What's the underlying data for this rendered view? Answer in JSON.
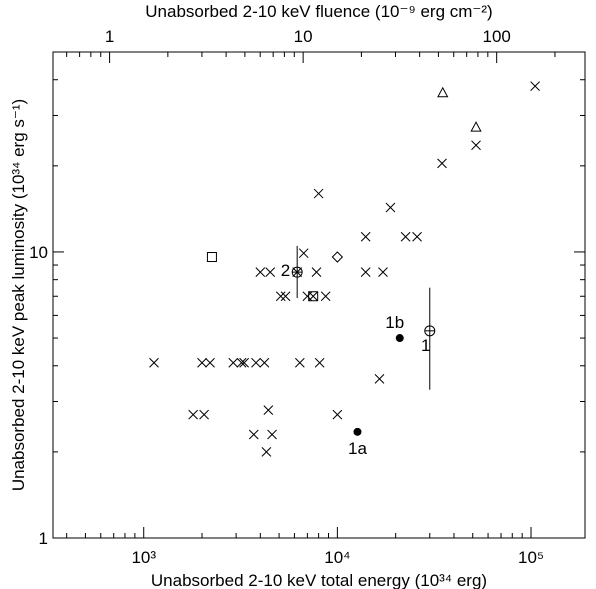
{
  "chart_data": {
    "type": "scatter",
    "title": "",
    "xlabel": "Unabsorbed 2-10 keV total energy (10³⁴ erg)",
    "ylabel": "Unabsorbed 2-10 keV peak luminosity (10³⁴ erg s⁻¹)",
    "x2label": "Unabsorbed 2-10 keV fluence (10⁻⁹ erg cm⁻²)",
    "xscale": "log",
    "yscale": "log",
    "xlim": [
      340,
      190000
    ],
    "ylim": [
      1,
      50
    ],
    "x2lim": [
      0.51,
      286
    ],
    "xticks": [
      {
        "value": 1000,
        "label": "10³"
      },
      {
        "value": 10000,
        "label": "10⁴"
      },
      {
        "value": 100000,
        "label": "10⁵"
      }
    ],
    "yticks": [
      {
        "value": 1,
        "label": "1"
      },
      {
        "value": 10,
        "label": "10"
      }
    ],
    "x2ticks": [
      {
        "value": 1,
        "label": "1"
      },
      {
        "value": 10,
        "label": "10"
      },
      {
        "value": 100,
        "label": "100"
      }
    ],
    "grid": false,
    "legend": "none",
    "colors": {
      "marker": "#000000",
      "axis": "#000000",
      "background": "#ffffff"
    },
    "series": [
      {
        "marker": "x",
        "points": [
          [
            1130,
            4.1
          ],
          [
            1800,
            2.7
          ],
          [
            2000,
            4.1
          ],
          [
            2050,
            2.7
          ],
          [
            2200,
            4.1
          ],
          [
            2900,
            4.1
          ],
          [
            3200,
            4.1
          ],
          [
            3300,
            4.1
          ],
          [
            3700,
            2.3
          ],
          [
            3800,
            4.1
          ],
          [
            4000,
            8.5
          ],
          [
            4200,
            4.1
          ],
          [
            4300,
            2.0
          ],
          [
            4400,
            2.8
          ],
          [
            4500,
            8.5
          ],
          [
            4600,
            2.3
          ],
          [
            5100,
            7.0
          ],
          [
            5400,
            7.0
          ],
          [
            6200,
            8.5
          ],
          [
            6400,
            4.1
          ],
          [
            6700,
            9.9
          ],
          [
            7000,
            7.0
          ],
          [
            7500,
            7.0
          ],
          [
            7800,
            8.5
          ],
          [
            8000,
            16.0
          ],
          [
            8100,
            4.1
          ],
          [
            8700,
            7.0
          ],
          [
            10000,
            2.7
          ],
          [
            14000,
            8.5
          ],
          [
            14000,
            11.3
          ],
          [
            16500,
            3.6
          ],
          [
            17200,
            8.5
          ],
          [
            18800,
            14.3
          ],
          [
            22500,
            11.3
          ],
          [
            25800,
            11.3
          ],
          [
            34700,
            20.4
          ],
          [
            52000,
            23.6
          ],
          [
            105000,
            38.0
          ]
        ]
      },
      {
        "marker": "triangle",
        "points": [
          [
            35000,
            36.0
          ],
          [
            52000,
            27.3
          ]
        ]
      },
      {
        "marker": "square",
        "points": [
          [
            2250,
            9.6
          ],
          [
            7500,
            7.0
          ]
        ]
      },
      {
        "marker": "diamond",
        "points": [
          [
            10000,
            9.6
          ]
        ]
      },
      {
        "marker": "filled-circle",
        "points": [
          [
            12700,
            2.35
          ],
          [
            21000,
            5.0
          ]
        ]
      },
      {
        "marker": "crossed-circle",
        "points": [
          [
            6200,
            8.5
          ],
          [
            30000,
            5.3
          ]
        ]
      }
    ],
    "error_bars": [
      {
        "x": 6200,
        "ylow": 6.9,
        "yhigh": 10.5
      },
      {
        "x": 30000,
        "ylow": 3.3,
        "yhigh": 7.5
      }
    ],
    "annotations": [
      {
        "text": "2",
        "x": 6200,
        "y": 8.5,
        "anchor": "left"
      },
      {
        "text": "1b",
        "x": 21000,
        "y": 5.0,
        "anchor": "above"
      },
      {
        "text": "1",
        "x": 30000,
        "y": 5.3,
        "anchor": "below-left"
      },
      {
        "text": "1a",
        "x": 12700,
        "y": 2.35,
        "anchor": "below"
      }
    ]
  }
}
